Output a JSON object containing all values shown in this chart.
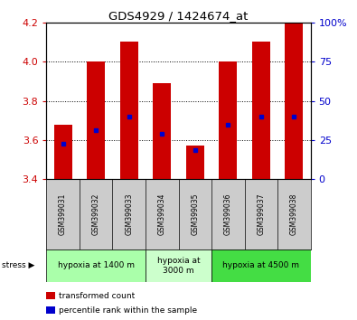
{
  "title": "GDS4929 / 1424674_at",
  "samples": [
    "GSM399031",
    "GSM399032",
    "GSM399033",
    "GSM399034",
    "GSM399035",
    "GSM399036",
    "GSM399037",
    "GSM399038"
  ],
  "transformed_count": [
    3.68,
    4.0,
    4.1,
    3.89,
    3.57,
    4.0,
    4.1,
    4.2
  ],
  "percentile_rank": [
    3.58,
    3.65,
    3.72,
    3.63,
    3.55,
    3.68,
    3.72,
    3.72
  ],
  "ymin": 3.4,
  "ymax": 4.2,
  "bar_color": "#cc0000",
  "dot_color": "#0000cc",
  "grid_lines": [
    3.6,
    3.8,
    4.0
  ],
  "groups": [
    {
      "label": "hypoxia at 1400 m",
      "start": 0,
      "end": 3,
      "color": "#aaffaa"
    },
    {
      "label": "hypoxia at\n3000 m",
      "start": 3,
      "end": 5,
      "color": "#ccffcc"
    },
    {
      "label": "hypoxia at 4500 m",
      "start": 5,
      "end": 8,
      "color": "#44dd44"
    }
  ],
  "left_axis_color": "#cc0000",
  "right_axis_color": "#0000cc",
  "left_yticks": [
    3.4,
    3.6,
    3.8,
    4.0,
    4.2
  ],
  "right_yticks": [
    0,
    25,
    50,
    75,
    100
  ],
  "right_ytick_labels": [
    "0",
    "25",
    "50",
    "75",
    "100%"
  ],
  "bar_bottom": 3.4,
  "sample_bg_color": "#cccccc",
  "fig_bg": "#ffffff"
}
